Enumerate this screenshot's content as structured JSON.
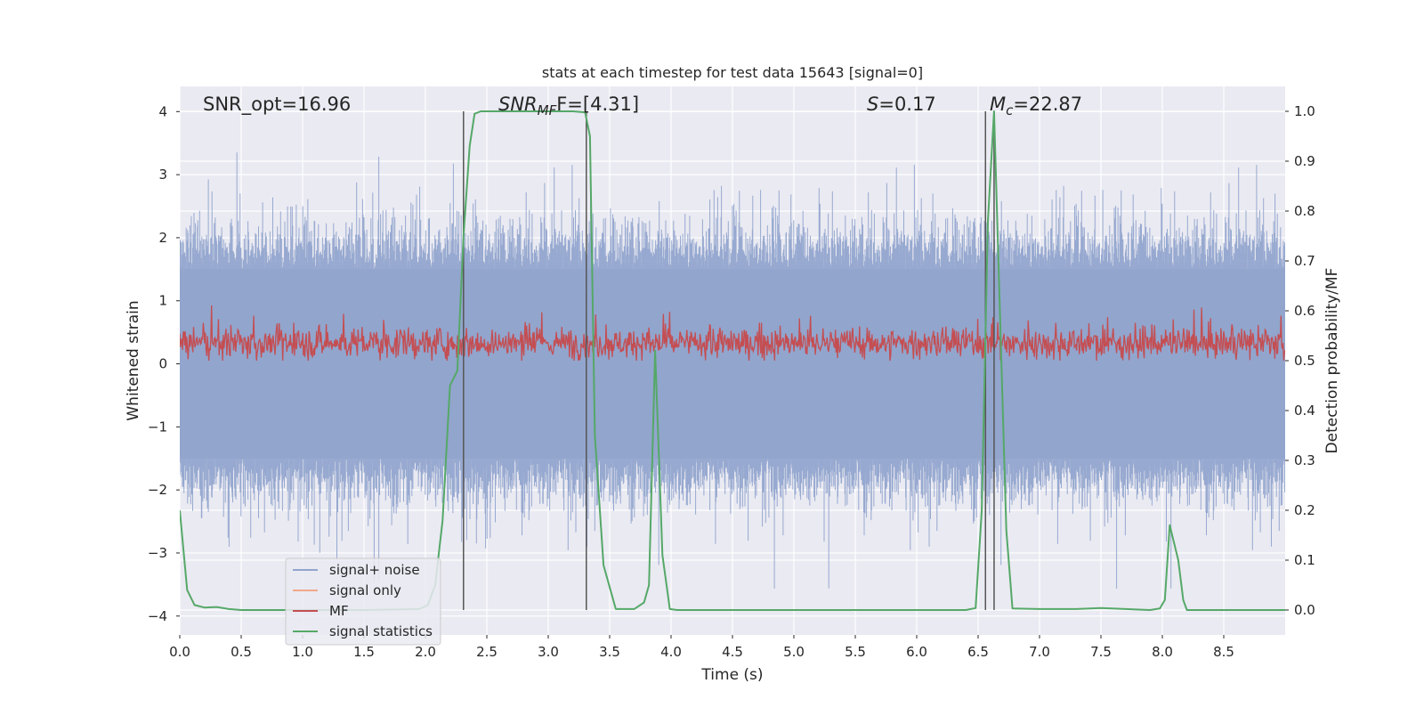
{
  "chart_data": {
    "type": "line",
    "title": "stats at each timestep for test data 15643 [signal=0]",
    "xlabel": "Time (s)",
    "ylabel_left": "Whitened strain",
    "ylabel_right": "Detection probability/MF",
    "xlim": [
      0,
      9.0
    ],
    "ylim_left": [
      -4.3,
      4.4
    ],
    "ylim_right": [
      -0.05,
      1.05
    ],
    "x_ticks": [
      0.0,
      0.5,
      1.0,
      1.5,
      2.0,
      2.5,
      3.0,
      3.5,
      4.0,
      4.5,
      5.0,
      5.5,
      6.0,
      6.5,
      7.0,
      7.5,
      8.0,
      8.5
    ],
    "x_tick_labels": [
      "0.0",
      "0.5",
      "1.0",
      "1.5",
      "2.0",
      "2.5",
      "3.0",
      "3.5",
      "4.0",
      "4.5",
      "5.0",
      "5.5",
      "6.0",
      "6.5",
      "7.0",
      "7.5",
      "8.0",
      "8.5"
    ],
    "y_left_ticks": [
      -4,
      -3,
      -2,
      -1,
      0,
      1,
      2,
      3,
      4
    ],
    "y_left_tick_labels": [
      "−4",
      "−3",
      "−2",
      "−1",
      "0",
      "1",
      "2",
      "3",
      "4"
    ],
    "y_right_ticks": [
      0.0,
      0.1,
      0.2,
      0.3,
      0.4,
      0.5,
      0.6,
      0.7,
      0.8,
      0.9,
      1.0
    ],
    "y_right_tick_labels": [
      "0.0",
      "0.1",
      "0.2",
      "0.3",
      "0.4",
      "0.5",
      "0.6",
      "0.7",
      "0.8",
      "0.9",
      "1.0"
    ],
    "grid": true,
    "legend_position": "lower-left",
    "annotations": {
      "snr_opt": "SNR_opt=16.96",
      "snr_mf_prefix": "SNR",
      "snr_mf_sub": "MF",
      "snr_mf_suffix": "F=[4.31]",
      "s_prefix": "S",
      "s_suffix": "=0.17",
      "mc_prefix": "M",
      "mc_sub": "c",
      "mc_suffix": "=22.87"
    },
    "vertical_markers": [
      2.31,
      3.31,
      6.56,
      6.63
    ],
    "series": [
      {
        "name": "signal+ noise",
        "color": "#92a5cd",
        "axis": "left",
        "kind": "noise",
        "typical_range": [
          -2.0,
          2.0
        ],
        "peak_max": 3.75,
        "peak_min": -3.7
      },
      {
        "name": "signal only",
        "color": "#f0a88a",
        "axis": "left",
        "kind": "flat",
        "values": []
      },
      {
        "name": "MF",
        "color": "#c44e52",
        "axis": "right",
        "kind": "noise",
        "typical_range": [
          0.5,
          0.6
        ],
        "peak_max": 0.63
      },
      {
        "name": "signal statistics",
        "color": "#55a868",
        "axis": "right",
        "kind": "line",
        "x": [
          0.0,
          0.06,
          0.12,
          0.2,
          0.3,
          0.4,
          0.5,
          1.0,
          1.5,
          1.95,
          2.02,
          2.08,
          2.14,
          2.2,
          2.26,
          2.31,
          2.36,
          2.4,
          2.45,
          2.5,
          3.0,
          3.2,
          3.3,
          3.34,
          3.38,
          3.45,
          3.55,
          3.7,
          3.78,
          3.82,
          3.87,
          3.93,
          3.99,
          4.05,
          4.5,
          5.0,
          5.5,
          6.0,
          6.4,
          6.48,
          6.53,
          6.58,
          6.63,
          6.68,
          6.73,
          6.78,
          7.0,
          7.3,
          7.5,
          7.7,
          7.9,
          7.98,
          8.02,
          8.06,
          8.13,
          8.17,
          8.2,
          8.25,
          8.5,
          8.9,
          9.0
        ],
        "y": [
          0.2,
          0.04,
          0.01,
          0.005,
          0.006,
          0.002,
          0.0,
          0.0,
          0.0,
          0.002,
          0.01,
          0.05,
          0.18,
          0.45,
          0.48,
          0.75,
          0.93,
          0.995,
          1.0,
          1.0,
          1.0,
          1.0,
          0.998,
          0.95,
          0.35,
          0.09,
          0.002,
          0.002,
          0.015,
          0.05,
          0.52,
          0.11,
          0.002,
          0.0,
          0.0,
          0.0,
          0.0,
          0.0,
          0.0,
          0.004,
          0.2,
          0.78,
          1.0,
          0.58,
          0.16,
          0.003,
          0.002,
          0.002,
          0.004,
          0.002,
          0.0,
          0.003,
          0.02,
          0.17,
          0.1,
          0.02,
          0.0,
          0.0,
          0.0,
          0.0,
          0.0
        ]
      }
    ]
  }
}
